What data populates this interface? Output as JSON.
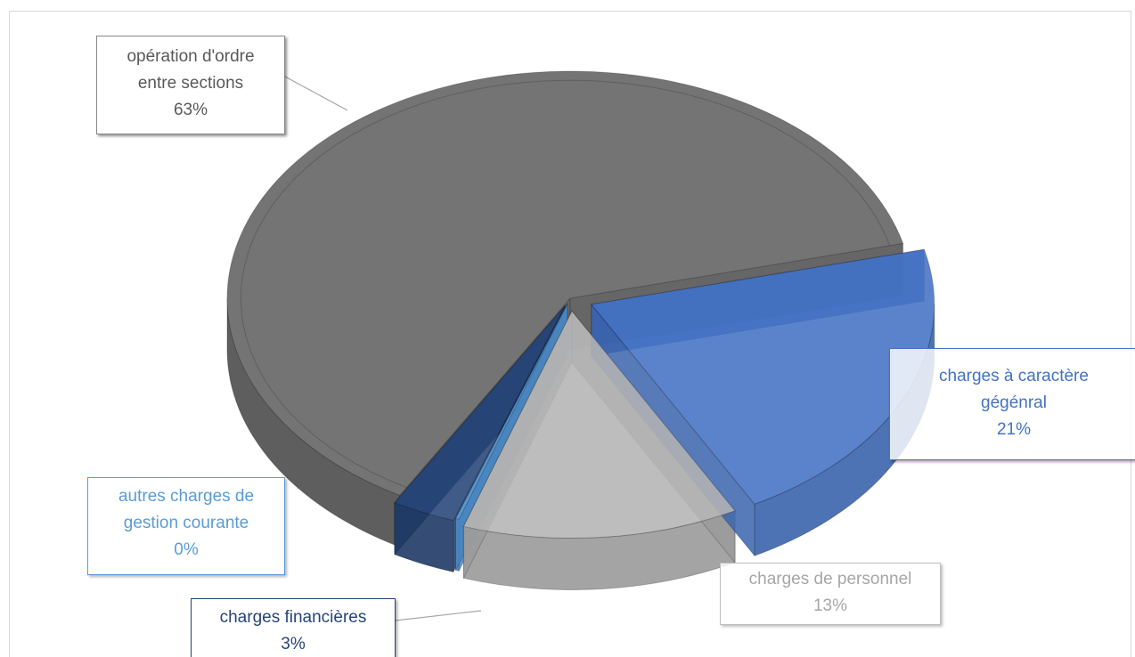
{
  "chart_data": {
    "type": "pie",
    "title": "",
    "series": [
      {
        "values": [
          63,
          21,
          13,
          3,
          0
        ],
        "categories": [
          "opération d'ordre entre sections",
          "charges à caractère gégénral",
          "charges de personnel",
          "charges financières",
          "autres charges de gestion courante"
        ]
      }
    ],
    "value_format": "percent",
    "style": "3d-exploded",
    "legend": "none"
  },
  "labels": {
    "operation": {
      "line1": "opération d'ordre",
      "line2": "entre sections",
      "pct": "63%"
    },
    "caractere": {
      "line1": "charges à caractère",
      "line2": "gégénral",
      "pct": "21%"
    },
    "personnel": {
      "line1": "charges de personnel",
      "pct": "13%"
    },
    "financieres": {
      "line1": "charges financières",
      "pct": "3%"
    },
    "autres": {
      "line1": "autres charges de",
      "line2": "gestion courante",
      "pct": "0%"
    }
  },
  "colors": {
    "operation": "#747474",
    "caractere": "#4472c4",
    "personnel": "#b4b4b4",
    "financieres": "#264478",
    "autres": "#5b9bd5"
  }
}
